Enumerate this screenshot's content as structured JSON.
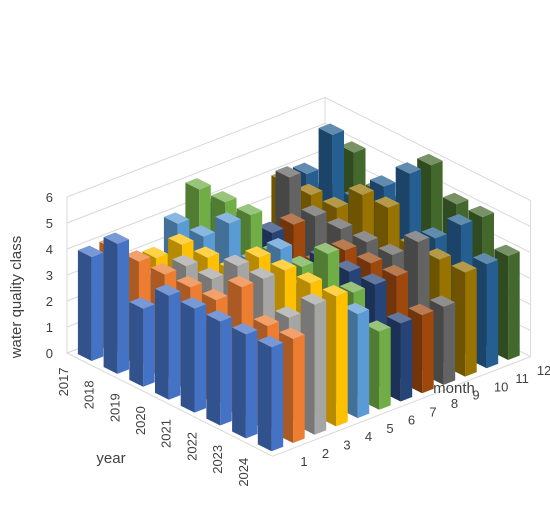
{
  "chart_data": {
    "type": "bar3d",
    "ylabel": "water quality class",
    "xlabel": "year",
    "zlabel": "month",
    "ylim": [
      0,
      6
    ],
    "yticks": [
      "0",
      "1",
      "2",
      "3",
      "4",
      "5",
      "6"
    ],
    "years": [
      "2017",
      "2018",
      "2019",
      "2020",
      "2021",
      "2022",
      "2023",
      "2024"
    ],
    "months": [
      "1",
      "2",
      "3",
      "4",
      "5",
      "6",
      "7",
      "8",
      "9",
      "10",
      "11",
      "12"
    ],
    "values": [
      [
        4,
        4,
        3,
        3,
        4,
        5,
        4,
        3,
        2,
        4,
        4,
        3
      ],
      [
        5,
        4,
        3,
        4,
        4,
        5,
        4,
        3,
        5,
        4,
        6,
        5
      ],
      [
        3,
        4,
        4,
        4,
        5,
        5,
        4,
        4,
        4,
        4,
        4,
        4
      ],
      [
        4,
        4,
        4,
        4,
        4,
        4,
        3,
        3,
        4,
        5,
        5,
        4
      ],
      [
        4,
        4,
        5,
        5,
        5,
        4,
        4,
        4,
        4,
        5,
        6,
        6
      ],
      [
        4,
        5,
        5,
        5,
        4,
        5,
        4,
        4,
        4,
        4,
        4,
        5
      ],
      [
        4,
        4,
        4,
        5,
        4,
        4,
        4,
        4,
        5,
        4,
        5,
        5
      ],
      [
        4,
        4,
        5,
        5,
        4,
        3,
        3,
        3,
        3,
        4,
        4,
        4
      ]
    ],
    "colors": [
      "#4472c4",
      "#ed7d31",
      "#a5a5a5",
      "#ffc000",
      "#5b9bd5",
      "#70ad47",
      "#264478",
      "#9e480e",
      "#636363",
      "#997300",
      "#255e91",
      "#43682b"
    ]
  }
}
